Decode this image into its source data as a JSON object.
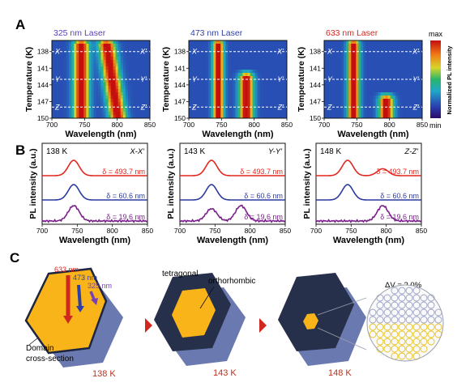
{
  "panels": {
    "a": "A",
    "b": "B",
    "c": "C"
  },
  "colorbar": {
    "label": "Normalized PL intensity",
    "max": "max",
    "min": "min"
  },
  "row_a": [
    {
      "title": "325 nm Laser",
      "title_color": "#5a3fb8",
      "ylabel": "Temperature (K)",
      "xlabel": "Wavelength (nm)",
      "ytick_labels": [
        "138",
        "141",
        "144",
        "147",
        "150"
      ],
      "xtick_labels": [
        "700",
        "750",
        "800",
        "850"
      ],
      "markers": [
        {
          "left": "X",
          "right": "X'"
        },
        {
          "left": "Y",
          "right": "Y'"
        },
        {
          "left": "Z",
          "right": "Z'"
        }
      ]
    },
    {
      "title": "473 nm Laser",
      "title_color": "#2c3fa8",
      "ylabel": "Temperature (K)",
      "xlabel": "Wavelength (nm)",
      "ytick_labels": [
        "138",
        "141",
        "144",
        "147",
        "150"
      ],
      "xtick_labels": [
        "700",
        "750",
        "800",
        "850"
      ],
      "markers": [
        {
          "left": "X",
          "right": "X'"
        },
        {
          "left": "Y",
          "right": "Y'"
        },
        {
          "left": "Z",
          "right": "Z'"
        }
      ]
    },
    {
      "title": "633 nm Laser",
      "title_color": "#d0281f",
      "ylabel": "Temperature (K)",
      "xlabel": "Wavelength (nm)",
      "ytick_labels": [
        "138",
        "141",
        "144",
        "147",
        "150"
      ],
      "xtick_labels": [
        "700",
        "750",
        "800",
        "850"
      ],
      "markers": [
        {
          "left": "X",
          "right": "X'"
        },
        {
          "left": "Y",
          "right": "Y'"
        },
        {
          "left": "Z",
          "right": "Z'"
        }
      ]
    }
  ],
  "row_b": [
    {
      "temp": "138 K",
      "cut": "X-X'",
      "ylabel": "PL intensity (a.u.)",
      "xlabel": "Wavelength (nm)",
      "xtick_labels": [
        "700",
        "750",
        "800",
        "850"
      ],
      "curves": [
        {
          "label": "δ = 493.7 nm",
          "color": "#e0261e"
        },
        {
          "label": "δ = 60.6 nm",
          "color": "#2b3aa0"
        },
        {
          "label": "δ = 19.6 nm",
          "color": "#7a1f8a"
        }
      ]
    },
    {
      "temp": "143 K",
      "cut": "Y-Y'",
      "ylabel": "PL intensity (a.u.)",
      "xlabel": "Wavelength (nm)",
      "xtick_labels": [
        "700",
        "750",
        "800",
        "850"
      ],
      "curves": [
        {
          "label": "δ = 493.7 nm",
          "color": "#e0261e"
        },
        {
          "label": "δ = 60.6 nm",
          "color": "#2b3aa0"
        },
        {
          "label": "δ = 19.6 nm",
          "color": "#7a1f8a"
        }
      ]
    },
    {
      "temp": "148 K",
      "cut": "Z-Z'",
      "ylabel": "PL intensity (a.u.)",
      "xlabel": "Wavelength (nm)",
      "xtick_labels": [
        "700",
        "750",
        "800",
        "850"
      ],
      "curves": [
        {
          "label": "δ = 493.7 nm",
          "color": "#e0261e"
        },
        {
          "label": "δ = 60.6 nm",
          "color": "#2b3aa0"
        },
        {
          "label": "δ = 19.6 nm",
          "color": "#7a1f8a"
        }
      ]
    }
  ],
  "row_c": {
    "lasers": [
      {
        "label": "633 nm",
        "color": "#d0281f"
      },
      {
        "label": "473 nm",
        "color": "#2c3fa8"
      },
      {
        "label": "325 nm",
        "color": "#7a3fb8"
      }
    ],
    "domain_label_1": "Domain",
    "domain_label_2": "cross-section",
    "tetragonal": "tetragonal",
    "orthorhombic": "orthorhombic",
    "dv": "ΔV = 2.0%",
    "temps": [
      "138 K",
      "143 K",
      "148 K"
    ],
    "temp_color": "#b8321f",
    "arrow_color": "#d0281f",
    "core_color": "#f8b418",
    "shell_color": "#27304a",
    "side_color": "#6a7ab0"
  },
  "chart_data": [
    {
      "type": "heatmap",
      "title": "325 nm Laser",
      "xlabel": "Wavelength (nm)",
      "ylabel": "Temperature (K)",
      "xlim": [
        700,
        850
      ],
      "ylim": [
        150,
        136
      ],
      "x_ticks": [
        700,
        750,
        800,
        850
      ],
      "y_ticks": [
        138,
        141,
        144,
        147,
        150
      ],
      "cuts_temperature_K": [
        138,
        143,
        148
      ],
      "series": [
        {
          "peak_nm": 745,
          "t_from": 136,
          "t_to": 150,
          "width_nm": 13
        },
        {
          "peak_nm": 783,
          "t_from": 136,
          "t_to": 150,
          "width_nm": 14,
          "drift_nm": 18
        }
      ]
    },
    {
      "type": "heatmap",
      "title": "473 nm Laser",
      "xlabel": "Wavelength (nm)",
      "ylabel": "Temperature (K)",
      "xlim": [
        700,
        850
      ],
      "ylim": [
        150,
        136
      ],
      "x_ticks": [
        700,
        750,
        800,
        850
      ],
      "y_ticks": [
        138,
        141,
        144,
        147,
        150
      ],
      "cuts_temperature_K": [
        138,
        143,
        148
      ],
      "series": [
        {
          "peak_nm": 745,
          "t_from": 136,
          "t_to": 150,
          "width_nm": 9
        },
        {
          "peak_nm": 788,
          "t_from": 142,
          "t_to": 150,
          "width_nm": 12
        }
      ]
    },
    {
      "type": "heatmap",
      "title": "633 nm Laser",
      "xlabel": "Wavelength (nm)",
      "ylabel": "Temperature (K)",
      "xlim": [
        700,
        850
      ],
      "ylim": [
        150,
        136
      ],
      "x_ticks": [
        700,
        750,
        800,
        850
      ],
      "y_ticks": [
        138,
        141,
        144,
        147,
        150
      ],
      "cuts_temperature_K": [
        138,
        143,
        148
      ],
      "series": [
        {
          "peak_nm": 745,
          "t_from": 136,
          "t_to": 150,
          "width_nm": 10
        },
        {
          "peak_nm": 795,
          "t_from": 146,
          "t_to": 150,
          "width_nm": 12
        }
      ]
    },
    {
      "type": "line",
      "xlabel": "Wavelength (nm)",
      "ylabel": "PL intensity (a.u.)",
      "xlim": [
        700,
        850
      ],
      "annotation": "138 K X-X'",
      "series": [
        {
          "name": "δ = 493.7 nm",
          "peaks": [
            {
              "x": 745,
              "height": 1.0
            }
          ]
        },
        {
          "name": "δ = 60.6 nm",
          "peaks": [
            {
              "x": 745,
              "height": 1.0
            }
          ]
        },
        {
          "name": "δ = 19.6 nm",
          "peaks": [
            {
              "x": 745,
              "height": 1.0
            }
          ]
        }
      ]
    },
    {
      "type": "line",
      "xlabel": "Wavelength (nm)",
      "ylabel": "PL intensity (a.u.)",
      "xlim": [
        700,
        850
      ],
      "annotation": "143 K Y-Y'",
      "series": [
        {
          "name": "δ = 493.7 nm",
          "peaks": [
            {
              "x": 745,
              "height": 1.0
            }
          ]
        },
        {
          "name": "δ = 60.6 nm",
          "peaks": [
            {
              "x": 745,
              "height": 1.0
            }
          ]
        },
        {
          "name": "δ = 19.6 nm",
          "peaks": [
            {
              "x": 745,
              "height": 0.8
            },
            {
              "x": 787,
              "height": 1.0
            }
          ]
        }
      ]
    },
    {
      "type": "line",
      "xlabel": "Wavelength (nm)",
      "ylabel": "PL intensity (a.u.)",
      "xlim": [
        700,
        850
      ],
      "annotation": "148 K Z-Z'",
      "series": [
        {
          "name": "δ = 493.7 nm",
          "peaks": [
            {
              "x": 745,
              "height": 1.0
            },
            {
              "x": 795,
              "height": 0.45
            }
          ]
        },
        {
          "name": "δ = 60.6 nm",
          "peaks": [
            {
              "x": 745,
              "height": 1.0
            }
          ]
        },
        {
          "name": "δ = 19.6 nm",
          "peaks": [
            {
              "x": 795,
              "height": 1.0
            }
          ]
        }
      ]
    }
  ]
}
